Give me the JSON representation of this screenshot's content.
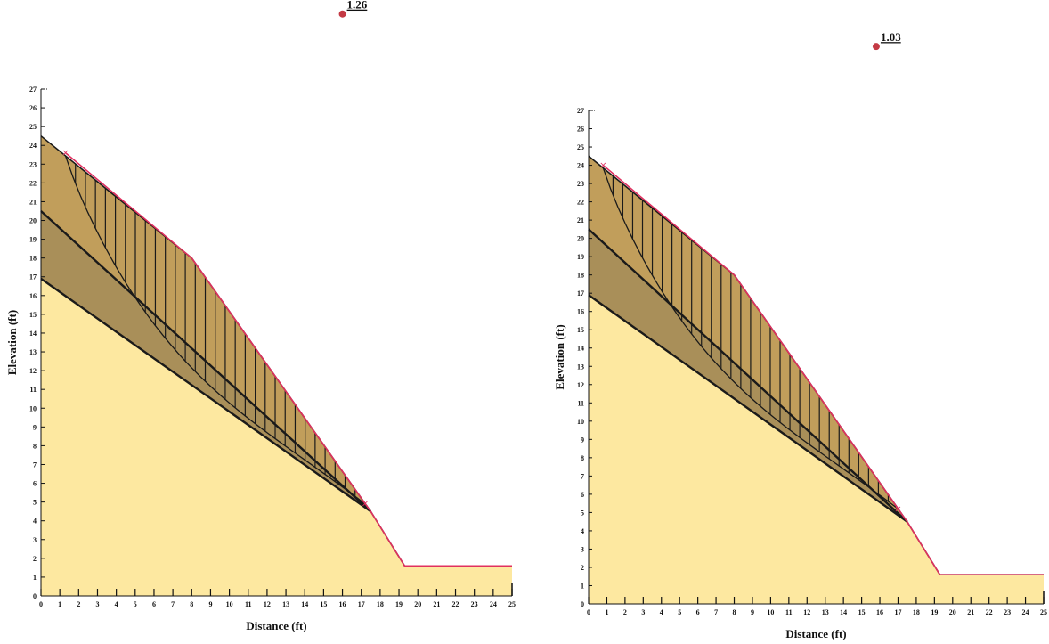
{
  "colors": {
    "foundation": "#fde8a0",
    "lower_layer": "#a48a55",
    "upper_layer": "#b6904f",
    "outline": "#1a1a1a",
    "surface": "#e0305f",
    "center_marker": "#c43a45"
  },
  "panels": [
    {
      "factor_of_safety": "1.26",
      "xlabel": "Distance (ft)",
      "ylabel": "Elevation (ft)",
      "xlim": [
        0,
        25
      ],
      "ylim": [
        0,
        27
      ],
      "x_ticks": [
        0,
        1,
        2,
        3,
        4,
        5,
        6,
        7,
        8,
        9,
        10,
        11,
        12,
        13,
        14,
        15,
        16,
        17,
        18,
        19,
        20,
        21,
        22,
        23,
        24,
        25
      ],
      "y_ticks": [
        0,
        1,
        2,
        3,
        4,
        5,
        6,
        7,
        8,
        9,
        10,
        11,
        12,
        13,
        14,
        15,
        16,
        17,
        18,
        19,
        20,
        21,
        22,
        23,
        24,
        25,
        26,
        27
      ],
      "center": {
        "x": 16,
        "y": 31
      },
      "slip_entry": {
        "x": 1.3,
        "y": 23.6
      },
      "slip_exit": {
        "x": 17.2,
        "y": 4.9
      }
    },
    {
      "factor_of_safety": "1.03",
      "xlabel": "Distance (ft)",
      "ylabel": "Elevation (ft)",
      "xlim": [
        0,
        25
      ],
      "ylim": [
        0,
        27
      ],
      "x_ticks": [
        0,
        1,
        2,
        3,
        4,
        5,
        6,
        7,
        8,
        9,
        10,
        11,
        12,
        13,
        14,
        15,
        16,
        17,
        18,
        19,
        20,
        21,
        22,
        23,
        24,
        25
      ],
      "y_ticks": [
        0,
        1,
        2,
        3,
        4,
        5,
        6,
        7,
        8,
        9,
        10,
        11,
        12,
        13,
        14,
        15,
        16,
        17,
        18,
        19,
        20,
        21,
        22,
        23,
        24,
        25,
        26,
        27
      ],
      "center": {
        "x": 15.8,
        "y": 30.5
      },
      "slip_entry": {
        "x": 0.8,
        "y": 24.0
      },
      "slip_exit": {
        "x": 17.0,
        "y": 5.2
      }
    }
  ],
  "geometry": {
    "ground_surface": [
      [
        0,
        24.5
      ],
      [
        8,
        18
      ],
      [
        17.5,
        4.5
      ],
      [
        19.3,
        1.6
      ],
      [
        25,
        1.6
      ]
    ],
    "layer_top_boundary": [
      [
        0,
        20.5
      ],
      [
        17.5,
        4.5
      ]
    ],
    "layer_bottom_boundary": [
      [
        0,
        16.9
      ],
      [
        17.5,
        4.5
      ]
    ]
  }
}
